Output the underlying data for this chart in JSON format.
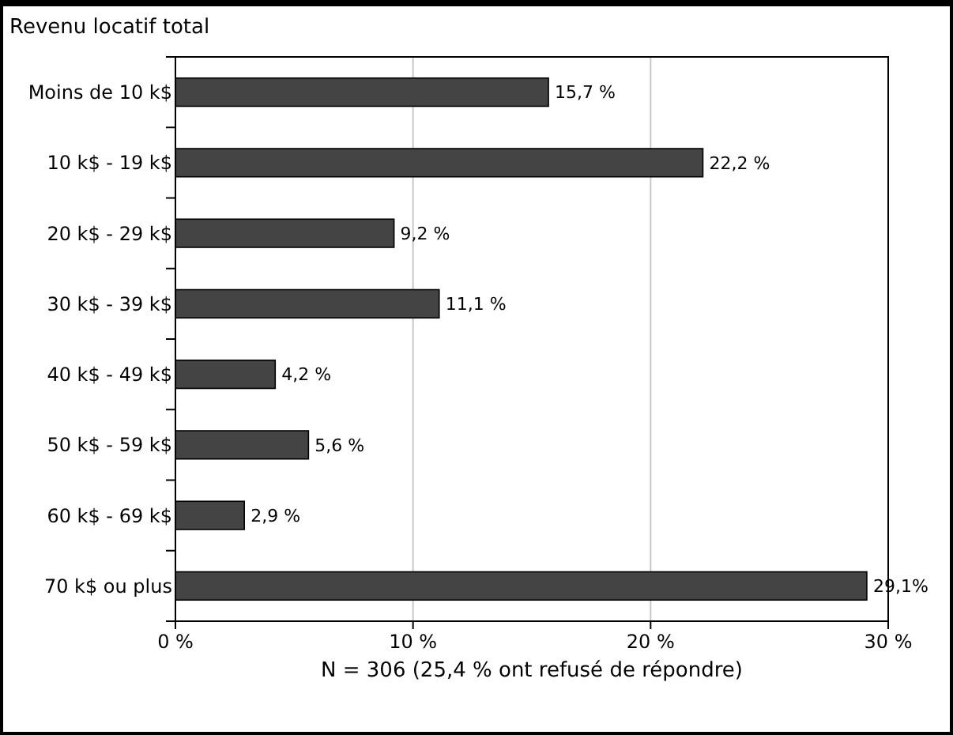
{
  "chart_data": {
    "type": "bar",
    "orientation": "horizontal",
    "title": "Revenu locatif total",
    "xlabel": "N = 306 (25,4 % ont refusé de répondre)",
    "categories": [
      "Moins de 10 k$",
      "10 k$ - 19 k$",
      "20 k$ - 29 k$",
      "30 k$ - 39 k$",
      "40 k$ - 49 k$",
      "50 k$ - 59 k$",
      "60 k$ - 69 k$",
      "70 k$ ou plus"
    ],
    "values": [
      15.7,
      22.2,
      9.2,
      11.1,
      4.2,
      5.6,
      2.9,
      29.1
    ],
    "value_labels": [
      "15,7 %",
      "22,2 %",
      "9,2 %",
      "11,1 %",
      "4,2 %",
      "5,6 %",
      "2,9 %",
      "29,1%"
    ],
    "color": "#444444",
    "xlim": [
      0,
      30
    ],
    "xticks": [
      {
        "value": 0,
        "label": "0 %"
      },
      {
        "value": 10,
        "label": "10 %"
      },
      {
        "value": 20,
        "label": "20 %"
      },
      {
        "value": 30,
        "label": "30 %"
      }
    ],
    "grid": "x"
  }
}
